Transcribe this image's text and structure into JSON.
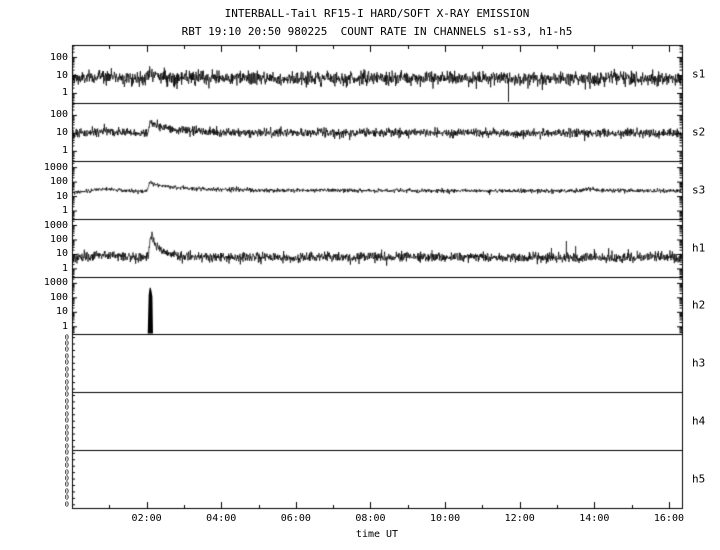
{
  "colors": {
    "foreground": "#000000",
    "background": "#ffffff"
  },
  "chart_data": {
    "type": "line",
    "title": "INTERBALL-Tail RF15-I HARD/SOFT X-RAY EMISSION",
    "subtitle": "RBT 19:10 20:50 980225  COUNT RATE IN CHANNELS s1-s3, h1-h5",
    "xlabel": "time UT",
    "y_scale": "log",
    "x_hours_range": [
      0,
      16.35
    ],
    "x_minor_tick_step_hours": 1,
    "x_major_ticks_hours": [
      2,
      4,
      6,
      8,
      10,
      12,
      14,
      16
    ],
    "x_major_tick_labels": [
      "02:00",
      "04:00",
      "06:00",
      "08:00",
      "10:00",
      "12:00",
      "14:00",
      "16:00"
    ],
    "panels": [
      {
        "label": "s1",
        "style": "noisy",
        "y_range": [
          0.3,
          500
        ],
        "y_major_ticks": [
          1,
          10,
          100
        ],
        "baseline_hours_counts": [
          [
            0,
            7
          ],
          [
            0.55,
            7
          ],
          [
            0.8,
            10
          ],
          [
            1.15,
            8.5
          ],
          [
            1.6,
            7
          ],
          [
            2.02,
            7
          ],
          [
            2.08,
            22
          ],
          [
            2.18,
            11
          ],
          [
            2.45,
            8
          ],
          [
            3.0,
            7
          ],
          [
            16.35,
            7
          ]
        ],
        "noise_sigma_ln": 0.45,
        "spikes_hours_counts": [],
        "dropouts_hours": [
          11.7
        ]
      },
      {
        "label": "s2",
        "style": "noisy",
        "y_range": [
          0.3,
          500
        ],
        "y_major_ticks": [
          1,
          10,
          100
        ],
        "baseline_hours_counts": [
          [
            0,
            10
          ],
          [
            0.5,
            11
          ],
          [
            0.8,
            14
          ],
          [
            1.2,
            12
          ],
          [
            1.7,
            10
          ],
          [
            2.02,
            10
          ],
          [
            2.09,
            45
          ],
          [
            2.25,
            28
          ],
          [
            2.6,
            18
          ],
          [
            3.2,
            13
          ],
          [
            4.5,
            11
          ],
          [
            16.35,
            10
          ]
        ],
        "noise_sigma_ln": 0.28,
        "spikes_hours_counts": [],
        "dropouts_hours": []
      },
      {
        "label": "s3",
        "style": "noisy",
        "y_range": [
          0.3,
          3000
        ],
        "y_major_ticks": [
          1,
          10,
          100,
          1000
        ],
        "baseline_hours_counts": [
          [
            0,
            20
          ],
          [
            0.4,
            22
          ],
          [
            0.75,
            34
          ],
          [
            1.05,
            32
          ],
          [
            1.5,
            25
          ],
          [
            2.0,
            23
          ],
          [
            2.07,
            95
          ],
          [
            2.3,
            60
          ],
          [
            2.8,
            42
          ],
          [
            3.5,
            33
          ],
          [
            5,
            28
          ],
          [
            8,
            26
          ],
          [
            11,
            25
          ],
          [
            13.6,
            25
          ],
          [
            13.85,
            35
          ],
          [
            14.1,
            26
          ],
          [
            16.35,
            25
          ]
        ],
        "noise_sigma_ln": 0.16,
        "spikes_hours_counts": [],
        "dropouts_hours": []
      },
      {
        "label": "h1",
        "style": "noisy",
        "y_range": [
          0.3,
          3000
        ],
        "y_major_ticks": [
          1,
          10,
          100,
          1000
        ],
        "baseline_hours_counts": [
          [
            0,
            6
          ],
          [
            0.5,
            6.5
          ],
          [
            0.8,
            11
          ],
          [
            1.2,
            7.5
          ],
          [
            1.8,
            6
          ],
          [
            2.03,
            6
          ],
          [
            2.09,
            90
          ],
          [
            2.13,
            270
          ],
          [
            2.22,
            45
          ],
          [
            2.45,
            14
          ],
          [
            2.9,
            8
          ],
          [
            3.5,
            6.5
          ],
          [
            16.35,
            6
          ]
        ],
        "noise_sigma_ln": 0.4,
        "spikes_hours_counts": [
          [
            8.3,
            22
          ],
          [
            9.65,
            20
          ],
          [
            12.85,
            28
          ],
          [
            13.25,
            85
          ],
          [
            13.5,
            38
          ],
          [
            14.0,
            24
          ],
          [
            15.15,
            18
          ]
        ],
        "dropouts_hours": []
      },
      {
        "label": "h2",
        "style": "filled-burst",
        "y_range": [
          0.3,
          3000
        ],
        "y_major_ticks": [
          1,
          10,
          100,
          1000
        ],
        "burst_outline_hours_counts": [
          [
            2.03,
            0.4
          ],
          [
            2.055,
            150
          ],
          [
            2.08,
            480
          ],
          [
            2.105,
            520
          ],
          [
            2.13,
            300
          ],
          [
            2.155,
            120
          ],
          [
            2.17,
            0.4
          ]
        ]
      },
      {
        "label": "h3",
        "style": "empty-zero",
        "zero_tick_label": "0",
        "zero_tick_count": 9
      },
      {
        "label": "h4",
        "style": "empty-zero",
        "zero_tick_label": "0",
        "zero_tick_count": 9
      },
      {
        "label": "h5",
        "style": "empty-zero",
        "zero_tick_label": "0",
        "zero_tick_count": 9
      }
    ]
  }
}
